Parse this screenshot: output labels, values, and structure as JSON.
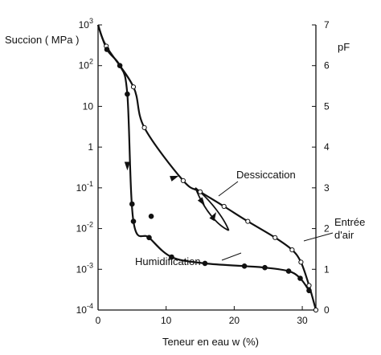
{
  "chart_data": {
    "type": "line",
    "title": "",
    "xlabel": "Teneur en eau w (%)",
    "ylabel_left": "Succion ( MPa )",
    "ylabel_right": "pF",
    "x_scale": "linear",
    "y_scale": "log",
    "xlim": [
      0,
      32
    ],
    "ylim": [
      0.0001,
      1000
    ],
    "x_ticks": [
      "0",
      "10",
      "20",
      "30"
    ],
    "y_ticks_left": [
      {
        "base": "10",
        "exp": "3"
      },
      {
        "base": "10",
        "exp": "2"
      },
      {
        "base": "10",
        "exp": ""
      },
      {
        "base": "1",
        "exp": ""
      },
      {
        "base": "10",
        "exp": "-1"
      },
      {
        "base": "10",
        "exp": "-2"
      },
      {
        "base": "10",
        "exp": "-3"
      },
      {
        "base": "10",
        "exp": "-4"
      }
    ],
    "y_ticks_right": [
      "0",
      "1",
      "2",
      "3",
      "4",
      "5",
      "6",
      "7"
    ],
    "grid": false,
    "annotations": {
      "dessiccation": "Dessiccation",
      "humidification": "Humidification",
      "air_entry_line1": "Entrée",
      "air_entry_line2": "d'air"
    },
    "series": [
      {
        "name": "Dessiccation",
        "marker": "open-circle",
        "color": "#111111",
        "x": [
          1.2,
          5.2,
          6.8,
          12.5,
          15.0,
          18.5,
          22.0,
          26.0,
          28.5,
          29.8,
          31.0,
          32.0
        ],
        "y": [
          300,
          30,
          3,
          0.15,
          0.08,
          0.035,
          0.015,
          0.006,
          0.003,
          0.0015,
          0.0004,
          0.0001
        ]
      },
      {
        "name": "Humidification",
        "marker": "filled-circle",
        "color": "#111111",
        "x": [
          1.3,
          3.2,
          4.3,
          5.2,
          7.5,
          10.8,
          15.7,
          21.5,
          24.5,
          28.0,
          29.7,
          31.0
        ],
        "y": [
          250,
          100,
          20,
          0.015,
          0.006,
          0.002,
          0.0014,
          0.0012,
          0.0011,
          0.0009,
          0.0006,
          0.0003
        ]
      },
      {
        "name": "",
        "marker": "filled-circle",
        "color": "#111111",
        "x": [
          5.0,
          7.8
        ],
        "y": [
          0.04,
          0.02
        ]
      }
    ]
  }
}
